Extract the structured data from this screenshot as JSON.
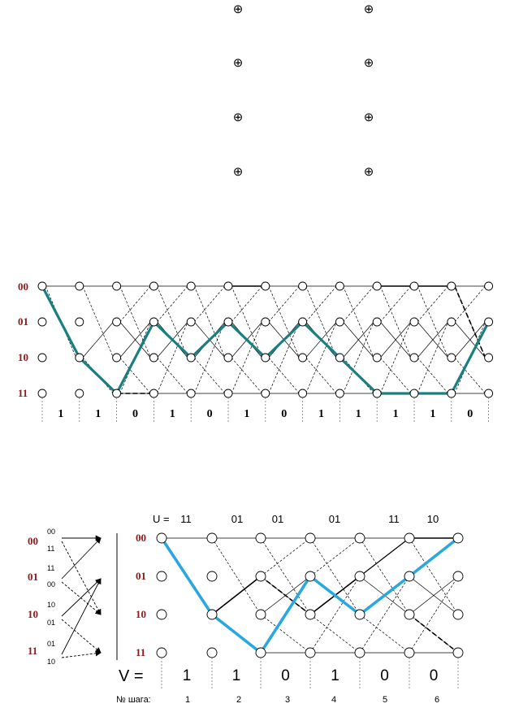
{
  "xor_symbol": "⊕",
  "trellis1": {
    "states": [
      "00",
      "01",
      "10",
      "11"
    ],
    "bits": [
      "1",
      "1",
      "0",
      "1",
      "0",
      "1",
      "0",
      "1",
      "1",
      "1",
      "1",
      "0"
    ]
  },
  "trellis2": {
    "u_label": "U =",
    "u_pairs": [
      "11",
      "01",
      "01",
      "01",
      "11",
      "10"
    ],
    "legend": {
      "states": [
        "00",
        "01",
        "10",
        "11"
      ],
      "outputs": [
        "00",
        "11",
        "11",
        "00",
        "10",
        "01",
        "01",
        "10"
      ]
    },
    "states": [
      "00",
      "01",
      "10",
      "11"
    ],
    "v_label": "V =",
    "v_bits": [
      "1",
      "1",
      "0",
      "1",
      "0",
      "0"
    ],
    "step_label": "№ шага:",
    "steps": [
      "1",
      "2",
      "3",
      "4",
      "5",
      "6"
    ]
  },
  "colors": {
    "path1": "#1a7f80",
    "path2": "#29a8e0",
    "state_label": "#8b1a1a"
  }
}
